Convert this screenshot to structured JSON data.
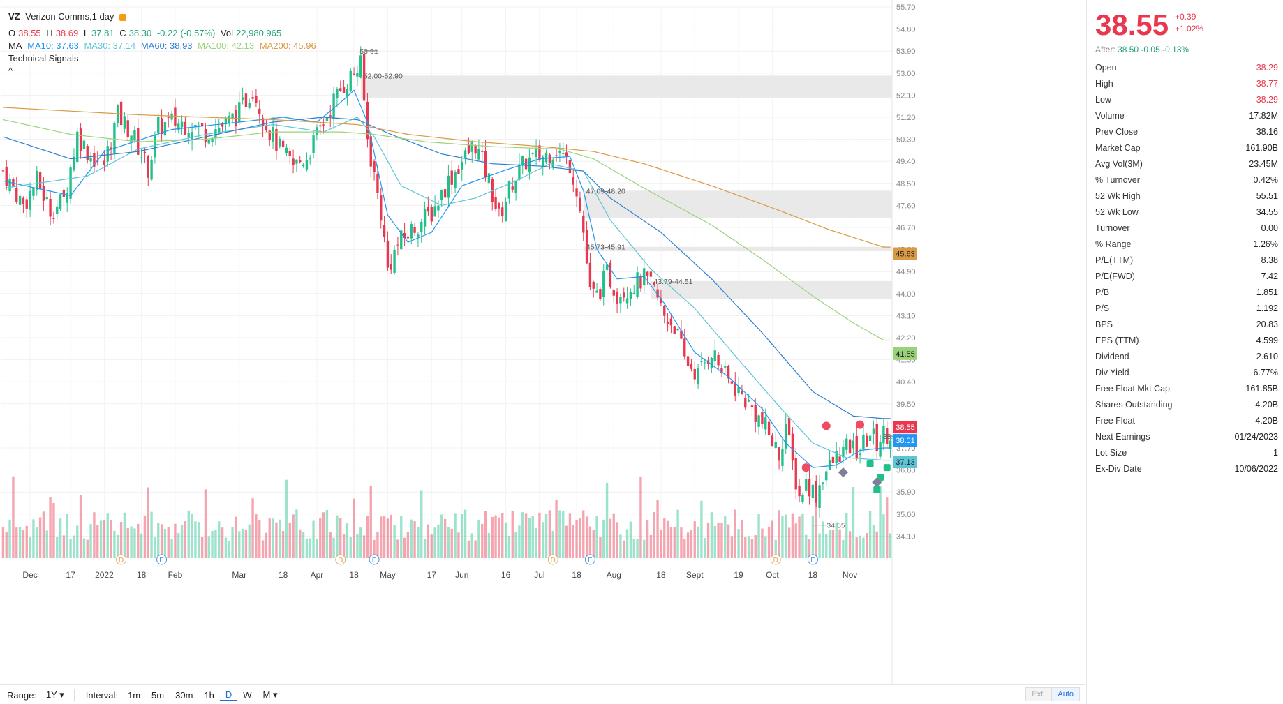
{
  "header": {
    "symbol": "VZ",
    "name": "Verizon Comms,1 day",
    "ohlc": {
      "o_label": "O",
      "o": "38.55",
      "h_label": "H",
      "h": "38.69",
      "l_label": "L",
      "l": "37.81",
      "c_label": "C",
      "c": "38.30",
      "chg": "-0.22",
      "chg_pct": "(-0.57%)",
      "vol_label": "Vol",
      "vol": "22,980,965"
    },
    "ma": {
      "label": "MA",
      "ma10": "MA10: 37.63",
      "ma30": "MA30: 37.14",
      "ma60": "MA60: 38.93",
      "ma100": "MA100: 42.13",
      "ma200": "MA200: 45.96"
    },
    "signals": "Technical Signals",
    "collapse": "^"
  },
  "colors": {
    "up": "#21c08b",
    "down": "#e8384f",
    "ma10": "#2196f3",
    "ma30": "#5ec5d6",
    "ma60": "#2f7fd0",
    "ma100": "#9ad27a",
    "ma200": "#d99a45",
    "zone": "#e9e9e9"
  },
  "chart_data": {
    "type": "candlestick",
    "title": "Verizon Comms, 1 day",
    "y_ticks": [
      "55.70",
      "54.80",
      "53.90",
      "53.00",
      "52.10",
      "51.20",
      "50.30",
      "49.40",
      "48.50",
      "47.60",
      "46.70",
      "45.80",
      "44.90",
      "44.00",
      "43.10",
      "42.20",
      "41.30",
      "40.40",
      "39.50",
      "38.60",
      "37.70",
      "36.80",
      "35.90",
      "35.00",
      "34.10"
    ],
    "ylim": [
      33.2,
      55.7
    ],
    "x_ticks": [
      {
        "label": "Dec",
        "idx": 8
      },
      {
        "label": "17",
        "idx": 20
      },
      {
        "label": "2022",
        "idx": 30
      },
      {
        "label": "18",
        "idx": 41
      },
      {
        "label": "Feb",
        "idx": 51
      },
      {
        "label": "Mar",
        "idx": 70
      },
      {
        "label": "18",
        "idx": 83
      },
      {
        "label": "Apr",
        "idx": 93
      },
      {
        "label": "18",
        "idx": 104
      },
      {
        "label": "May",
        "idx": 114
      },
      {
        "label": "17",
        "idx": 127
      },
      {
        "label": "Jun",
        "idx": 136
      },
      {
        "label": "16",
        "idx": 149
      },
      {
        "label": "Jul",
        "idx": 159
      },
      {
        "label": "18",
        "idx": 170
      },
      {
        "label": "Aug",
        "idx": 181
      },
      {
        "label": "18",
        "idx": 195
      },
      {
        "label": "Sept",
        "idx": 205
      },
      {
        "label": "19",
        "idx": 218
      },
      {
        "label": "Oct",
        "idx": 228
      },
      {
        "label": "18",
        "idx": 240
      },
      {
        "label": "Nov",
        "idx": 251
      }
    ],
    "close_points": [
      [
        0,
        49.0
      ],
      [
        6,
        47.6
      ],
      [
        10,
        48.6
      ],
      [
        14,
        47.4
      ],
      [
        18,
        47.8
      ],
      [
        22,
        50.5
      ],
      [
        26,
        49.6
      ],
      [
        30,
        49.3
      ],
      [
        34,
        51.3
      ],
      [
        38,
        50.6
      ],
      [
        43,
        49.1
      ],
      [
        46,
        50.8
      ],
      [
        50,
        51.0
      ],
      [
        56,
        50.9
      ],
      [
        60,
        50.6
      ],
      [
        66,
        50.9
      ],
      [
        70,
        51.4
      ],
      [
        74,
        52.4
      ],
      [
        78,
        50.9
      ],
      [
        82,
        49.9
      ],
      [
        86,
        49.2
      ],
      [
        90,
        49.6
      ],
      [
        94,
        50.7
      ],
      [
        98,
        51.9
      ],
      [
        102,
        52.7
      ],
      [
        106,
        53.3
      ],
      [
        108,
        50.3
      ],
      [
        112,
        47.3
      ],
      [
        114,
        45.0
      ],
      [
        117,
        46.0
      ],
      [
        121,
        46.6
      ],
      [
        127,
        47.3
      ],
      [
        132,
        48.6
      ],
      [
        136,
        49.4
      ],
      [
        140,
        50.1
      ],
      [
        144,
        48.6
      ],
      [
        147,
        47.1
      ],
      [
        151,
        48.6
      ],
      [
        155,
        49.4
      ],
      [
        160,
        49.6
      ],
      [
        164,
        49.9
      ],
      [
        168,
        49.3
      ],
      [
        170,
        48.3
      ],
      [
        172,
        46.5
      ],
      [
        174,
        44.0
      ],
      [
        176,
        43.9
      ],
      [
        179,
        44.8
      ],
      [
        182,
        44.0
      ],
      [
        186,
        44.3
      ],
      [
        190,
        44.6
      ],
      [
        193,
        44.1
      ],
      [
        196,
        43.1
      ],
      [
        199,
        42.7
      ],
      [
        202,
        41.3
      ],
      [
        206,
        40.7
      ],
      [
        210,
        41.7
      ],
      [
        214,
        40.6
      ],
      [
        218,
        40.0
      ],
      [
        222,
        39.3
      ],
      [
        226,
        38.5
      ],
      [
        230,
        37.4
      ],
      [
        232,
        38.7
      ],
      [
        234,
        37.0
      ],
      [
        236,
        35.7
      ],
      [
        238,
        36.3
      ],
      [
        241,
        35.8
      ],
      [
        243,
        36.6
      ],
      [
        245,
        36.9
      ],
      [
        248,
        37.5
      ],
      [
        251,
        37.7
      ],
      [
        254,
        37.6
      ],
      [
        257,
        38.3
      ],
      [
        259,
        37.9
      ],
      [
        261,
        38.3
      ]
    ],
    "ma_points": {
      "MA10": [
        [
          0,
          48.6
        ],
        [
          20,
          48.0
        ],
        [
          30,
          49.8
        ],
        [
          50,
          50.7
        ],
        [
          70,
          51.0
        ],
        [
          83,
          51.2
        ],
        [
          93,
          51.0
        ],
        [
          100,
          51.8
        ],
        [
          104,
          52.3
        ],
        [
          108,
          51.0
        ],
        [
          114,
          47.2
        ],
        [
          120,
          46.1
        ],
        [
          127,
          46.5
        ],
        [
          136,
          48.4
        ],
        [
          148,
          49.0
        ],
        [
          159,
          49.5
        ],
        [
          168,
          49.6
        ],
        [
          172,
          48.2
        ],
        [
          176,
          45.8
        ],
        [
          182,
          44.6
        ],
        [
          190,
          44.7
        ],
        [
          196,
          43.6
        ],
        [
          205,
          41.6
        ],
        [
          215,
          40.6
        ],
        [
          225,
          39.3
        ],
        [
          232,
          37.9
        ],
        [
          240,
          36.9
        ],
        [
          247,
          37.0
        ],
        [
          254,
          37.6
        ],
        [
          261,
          37.7
        ]
      ],
      "MA30": [
        [
          0,
          48.3
        ],
        [
          25,
          48.8
        ],
        [
          40,
          49.9
        ],
        [
          60,
          50.5
        ],
        [
          80,
          50.9
        ],
        [
          95,
          50.6
        ],
        [
          105,
          51.2
        ],
        [
          110,
          50.4
        ],
        [
          118,
          48.4
        ],
        [
          130,
          47.6
        ],
        [
          140,
          47.9
        ],
        [
          152,
          48.6
        ],
        [
          162,
          49.3
        ],
        [
          172,
          49.0
        ],
        [
          180,
          47.0
        ],
        [
          192,
          45.0
        ],
        [
          205,
          43.4
        ],
        [
          218,
          41.3
        ],
        [
          230,
          39.4
        ],
        [
          240,
          37.9
        ],
        [
          250,
          37.3
        ],
        [
          261,
          37.2
        ]
      ],
      "MA60": [
        [
          0,
          50.4
        ],
        [
          20,
          49.5
        ],
        [
          40,
          49.8
        ],
        [
          60,
          50.4
        ],
        [
          80,
          51.0
        ],
        [
          95,
          51.2
        ],
        [
          105,
          51.1
        ],
        [
          115,
          50.5
        ],
        [
          130,
          49.7
        ],
        [
          145,
          49.3
        ],
        [
          160,
          49.2
        ],
        [
          172,
          49.0
        ],
        [
          180,
          47.9
        ],
        [
          195,
          46.5
        ],
        [
          210,
          44.6
        ],
        [
          225,
          42.4
        ],
        [
          240,
          40.0
        ],
        [
          252,
          39.0
        ],
        [
          261,
          38.9
        ]
      ],
      "MA100": [
        [
          0,
          51.1
        ],
        [
          20,
          50.5
        ],
        [
          40,
          50.2
        ],
        [
          60,
          50.3
        ],
        [
          80,
          50.6
        ],
        [
          100,
          50.6
        ],
        [
          110,
          50.5
        ],
        [
          125,
          50.2
        ],
        [
          145,
          50.0
        ],
        [
          165,
          49.9
        ],
        [
          175,
          49.5
        ],
        [
          190,
          48.3
        ],
        [
          210,
          46.8
        ],
        [
          225,
          45.4
        ],
        [
          240,
          43.9
        ],
        [
          252,
          42.8
        ],
        [
          261,
          42.1
        ]
      ],
      "MA200": [
        [
          0,
          51.6
        ],
        [
          40,
          51.3
        ],
        [
          80,
          51.1
        ],
        [
          105,
          50.9
        ],
        [
          120,
          50.5
        ],
        [
          140,
          50.2
        ],
        [
          160,
          50.0
        ],
        [
          175,
          49.8
        ],
        [
          190,
          49.3
        ],
        [
          210,
          48.4
        ],
        [
          230,
          47.4
        ],
        [
          245,
          46.6
        ],
        [
          261,
          45.9
        ]
      ]
    },
    "resistance_zones": [
      {
        "label": "52.00-52.90",
        "low": 52.0,
        "high": 52.9,
        "start": 106
      },
      {
        "label": "47.09-48.20",
        "low": 47.09,
        "high": 48.2,
        "start": 172
      },
      {
        "label": "45.73-45.91",
        "low": 45.73,
        "high": 45.91,
        "start": 172
      },
      {
        "label": "43.79-44.51",
        "low": 43.79,
        "high": 44.51,
        "start": 192
      }
    ],
    "markers": [
      {
        "label": "53.91",
        "idx": 107,
        "value": 53.91
      },
      {
        "label": "38.18",
        "idx": 262,
        "value": 38.18
      },
      {
        "label": "34.55",
        "idx": 240,
        "value": 34.55
      }
    ],
    "events": [
      {
        "type": "D",
        "idx": 35
      },
      {
        "type": "E",
        "idx": 47
      },
      {
        "type": "D",
        "idx": 100
      },
      {
        "type": "E",
        "idx": 110
      },
      {
        "type": "D",
        "idx": 163
      },
      {
        "type": "E",
        "idx": 174
      },
      {
        "type": "D",
        "idx": 229
      },
      {
        "type": "E",
        "idx": 240
      }
    ],
    "price_tags": [
      {
        "label": "45.63",
        "value": 45.63,
        "color": "#d99a45"
      },
      {
        "label": "41.55",
        "value": 41.55,
        "color": "#9ad27a"
      },
      {
        "label": "38.55",
        "value": 38.55,
        "color": "#e8384f"
      },
      {
        "label": "38.01",
        "value": 38.01,
        "color": "#2196f3"
      },
      {
        "label": "37.13",
        "value": 37.13,
        "color": "#5ec5d6"
      }
    ],
    "n_bars": 264
  },
  "bottom": {
    "range_label": "Range:",
    "range_value": "1Y ▾",
    "interval_label": "Interval:",
    "intervals": [
      "1m",
      "5m",
      "30m",
      "1h",
      "D",
      "W",
      "M ▾"
    ],
    "active": "D",
    "ext": "Ext.",
    "auto": "Auto"
  },
  "quote": {
    "price": "38.55",
    "change": "+0.39",
    "change_pct": "+1.02%",
    "after_label": "After:",
    "after_value": "38.50 -0.05 -0.13%",
    "stats": [
      {
        "k": "Open",
        "v": "38.29",
        "red": true
      },
      {
        "k": "High",
        "v": "38.77",
        "red": true
      },
      {
        "k": "Low",
        "v": "38.29",
        "red": true
      },
      {
        "k": "Volume",
        "v": "17.82M"
      },
      {
        "k": "Prev Close",
        "v": "38.16"
      },
      {
        "k": "Market Cap",
        "v": "161.90B"
      },
      {
        "k": "Avg Vol(3M)",
        "v": "23.45M"
      },
      {
        "k": "% Turnover",
        "v": "0.42%"
      },
      {
        "k": "52 Wk High",
        "v": "55.51"
      },
      {
        "k": "52 Wk Low",
        "v": "34.55"
      },
      {
        "k": "Turnover",
        "v": "0.00"
      },
      {
        "k": "% Range",
        "v": "1.26%"
      },
      {
        "k": "P/E(TTM)",
        "v": "8.38"
      },
      {
        "k": "P/E(FWD)",
        "v": "7.42"
      },
      {
        "k": "P/B",
        "v": "1.851"
      },
      {
        "k": "P/S",
        "v": "1.192"
      },
      {
        "k": "BPS",
        "v": "20.83"
      },
      {
        "k": "EPS (TTM)",
        "v": "4.599"
      },
      {
        "k": "Dividend",
        "v": "2.610"
      },
      {
        "k": "Div Yield",
        "v": "6.77%"
      },
      {
        "k": "Free Float Mkt Cap",
        "v": "161.85B"
      },
      {
        "k": "Shares Outstanding",
        "v": "4.20B"
      },
      {
        "k": "Free Float",
        "v": "4.20B"
      },
      {
        "k": "Next Earnings",
        "v": "01/24/2023"
      },
      {
        "k": "Lot Size",
        "v": "1"
      },
      {
        "k": "Ex-Div Date",
        "v": "10/06/2022"
      }
    ]
  }
}
